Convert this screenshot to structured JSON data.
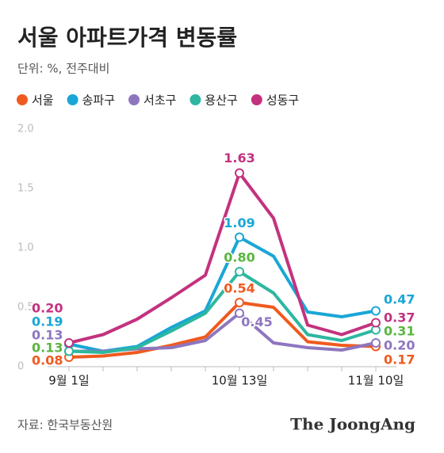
{
  "chart_data": {
    "type": "line",
    "title": "서울 아파트가격 변동률",
    "subtitle": "단위: %, 전주대비",
    "source": "자료: 한국부동산원",
    "brand": "The JoongAng",
    "categories": [
      "9월 1일",
      null,
      null,
      null,
      null,
      "10월 13일",
      null,
      null,
      null,
      "11월 10일"
    ],
    "ylim": [
      0,
      2
    ],
    "yticks": [
      {
        "value": 0,
        "label": "0"
      },
      {
        "value": 0.5,
        "label": "0.5"
      },
      {
        "value": 1,
        "label": "1.0"
      },
      {
        "value": 1.5,
        "label": "1.5"
      },
      {
        "value": 2,
        "label": "2.0"
      }
    ],
    "grid": false,
    "series": [
      {
        "name": "서울",
        "color": "#f05a1e",
        "label_color": "#f05a1e",
        "values": [
          0.08,
          0.09,
          0.12,
          0.18,
          0.25,
          0.54,
          0.5,
          0.21,
          0.18,
          0.17
        ],
        "value_labels": [
          "0.08",
          null,
          null,
          null,
          null,
          "0.54",
          null,
          null,
          null,
          "0.17"
        ]
      },
      {
        "name": "송파구",
        "color": "#1aa6d6",
        "label_color": "#1aa6d6",
        "values": [
          0.19,
          0.13,
          0.17,
          0.33,
          0.47,
          1.09,
          0.93,
          0.46,
          0.42,
          0.47
        ],
        "value_labels": [
          "0.19",
          null,
          null,
          null,
          null,
          "1.09",
          null,
          null,
          null,
          "0.47"
        ]
      },
      {
        "name": "서초구",
        "color": "#8e76bf",
        "label_color": "#8e76bf",
        "values": [
          0.13,
          0.13,
          0.15,
          0.16,
          0.22,
          0.45,
          0.2,
          0.16,
          0.14,
          0.2
        ],
        "value_labels": [
          "0.13",
          null,
          null,
          null,
          null,
          "0.45",
          null,
          null,
          null,
          "0.20"
        ]
      },
      {
        "name": "용산구",
        "color": "#2db7a0",
        "label_color": "#5ab540",
        "values": [
          0.13,
          0.12,
          0.16,
          0.3,
          0.45,
          0.8,
          0.62,
          0.27,
          0.22,
          0.31
        ],
        "value_labels": [
          "0.13",
          null,
          null,
          null,
          null,
          "0.80",
          null,
          null,
          null,
          "0.31"
        ]
      },
      {
        "name": "성동구",
        "color": "#c3327f",
        "label_color": "#c3327f",
        "values": [
          0.2,
          0.27,
          0.4,
          0.58,
          0.77,
          1.63,
          1.25,
          0.35,
          0.27,
          0.37
        ],
        "value_labels": [
          "0.20",
          null,
          null,
          null,
          null,
          "1.63",
          null,
          null,
          null,
          "0.37"
        ]
      }
    ]
  }
}
